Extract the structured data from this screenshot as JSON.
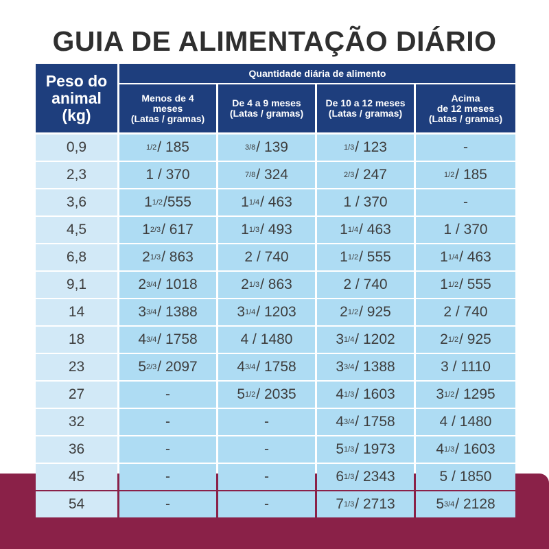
{
  "title": "GUIA DE ALIMENTAÇÃO DIÁRIO",
  "header": {
    "weight": "Peso do\nanimal\n(kg)",
    "quantity": "Quantidade diária de alimento",
    "ages": [
      "Menos de 4\nmeses\n(Latas / gramas)",
      "De 4 a 9 meses\n(Latas / gramas)",
      "De 10 a 12 meses\n(Latas / gramas)",
      "Acima\nde 12 meses\n(Latas / gramas)"
    ]
  },
  "rows": [
    {
      "weight": "0,9",
      "cells": [
        {
          "w": "",
          "f": "1/2",
          "g": " / 185"
        },
        {
          "w": "",
          "f": "3/8",
          "g": " / 139"
        },
        {
          "w": "",
          "f": "1/3",
          "g": " / 123"
        },
        {
          "w": "-",
          "f": "",
          "g": ""
        }
      ]
    },
    {
      "weight": "2,3",
      "cells": [
        {
          "w": "1",
          "f": "",
          "g": " / 370"
        },
        {
          "w": "",
          "f": "7/8",
          "g": " / 324"
        },
        {
          "w": "",
          "f": "2/3",
          "g": " / 247"
        },
        {
          "w": "",
          "f": "1/2",
          "g": " / 185"
        }
      ]
    },
    {
      "weight": "3,6",
      "cells": [
        {
          "w": "1",
          "f": "1/2",
          "g": " /555"
        },
        {
          "w": "1",
          "f": "1/4",
          "g": " / 463"
        },
        {
          "w": "1",
          "f": "",
          "g": " / 370"
        },
        {
          "w": "-",
          "f": "",
          "g": ""
        }
      ]
    },
    {
      "weight": "4,5",
      "cells": [
        {
          "w": "1",
          "f": "2/3",
          "g": " / 617"
        },
        {
          "w": "1",
          "f": "1/3",
          "g": " / 493"
        },
        {
          "w": "1",
          "f": "1/4",
          "g": " / 463"
        },
        {
          "w": "1",
          "f": "",
          "g": " / 370"
        }
      ]
    },
    {
      "weight": "6,8",
      "cells": [
        {
          "w": "2",
          "f": "1/3",
          "g": " / 863"
        },
        {
          "w": "2",
          "f": "",
          "g": " / 740"
        },
        {
          "w": "1",
          "f": "1/2",
          "g": " / 555"
        },
        {
          "w": "1",
          "f": "1/4",
          "g": " / 463"
        }
      ]
    },
    {
      "weight": "9,1",
      "cells": [
        {
          "w": "2",
          "f": "3/4",
          "g": " / 1018"
        },
        {
          "w": "2",
          "f": "1/3",
          "g": " / 863"
        },
        {
          "w": "2",
          "f": "",
          "g": " / 740"
        },
        {
          "w": "1",
          "f": "1/2",
          "g": " / 555"
        }
      ]
    },
    {
      "weight": "14",
      "cells": [
        {
          "w": "3",
          "f": "3/4",
          "g": " / 1388"
        },
        {
          "w": "3",
          "f": "1/4",
          "g": " / 1203"
        },
        {
          "w": "2",
          "f": "1/2",
          "g": " / 925"
        },
        {
          "w": "2",
          "f": "",
          "g": " / 740"
        }
      ]
    },
    {
      "weight": "18",
      "cells": [
        {
          "w": "4",
          "f": "3/4",
          "g": " / 1758"
        },
        {
          "w": "4",
          "f": "",
          "g": " / 1480"
        },
        {
          "w": "3",
          "f": "1/4",
          "g": " / 1202"
        },
        {
          "w": "2",
          "f": "1/2",
          "g": " / 925"
        }
      ]
    },
    {
      "weight": "23",
      "cells": [
        {
          "w": "5",
          "f": "2/3",
          "g": " / 2097"
        },
        {
          "w": "4",
          "f": "3/4",
          "g": " / 1758"
        },
        {
          "w": "3",
          "f": "3/4",
          "g": " / 1388"
        },
        {
          "w": "3",
          "f": "",
          "g": " / 1110"
        }
      ]
    },
    {
      "weight": "27",
      "cells": [
        {
          "w": "-",
          "f": "",
          "g": ""
        },
        {
          "w": "5",
          "f": "1/2",
          "g": " / 2035"
        },
        {
          "w": "4",
          "f": "1/3",
          "g": " / 1603"
        },
        {
          "w": "3",
          "f": "1/2",
          "g": " / 1295"
        }
      ]
    },
    {
      "weight": "32",
      "cells": [
        {
          "w": "-",
          "f": "",
          "g": ""
        },
        {
          "w": "-",
          "f": "",
          "g": ""
        },
        {
          "w": "4",
          "f": "3/4",
          "g": " / 1758"
        },
        {
          "w": "4",
          "f": "",
          "g": " / 1480"
        }
      ]
    },
    {
      "weight": "36",
      "cells": [
        {
          "w": "-",
          "f": "",
          "g": ""
        },
        {
          "w": "-",
          "f": "",
          "g": ""
        },
        {
          "w": "5",
          "f": "1/3",
          "g": " / 1973"
        },
        {
          "w": "4",
          "f": "1/3",
          "g": " / 1603"
        }
      ]
    },
    {
      "weight": "45",
      "cells": [
        {
          "w": "-",
          "f": "",
          "g": ""
        },
        {
          "w": "-",
          "f": "",
          "g": ""
        },
        {
          "w": "6",
          "f": "1/3",
          "g": " / 2343"
        },
        {
          "w": "5",
          "f": "",
          "g": " / 1850"
        }
      ]
    },
    {
      "weight": "54",
      "cells": [
        {
          "w": "-",
          "f": "",
          "g": ""
        },
        {
          "w": "-",
          "f": "",
          "g": ""
        },
        {
          "w": "7",
          "f": "1/3",
          "g": " / 2713"
        },
        {
          "w": "5",
          "f": "3/4",
          "g": " / 2128"
        }
      ]
    }
  ],
  "colors": {
    "header_blue": "#1e3e7d",
    "weight_cell": "#d2e9f7",
    "value_cell": "#aedcf3",
    "band": "#8a2148",
    "text": "#3d3d3d"
  }
}
